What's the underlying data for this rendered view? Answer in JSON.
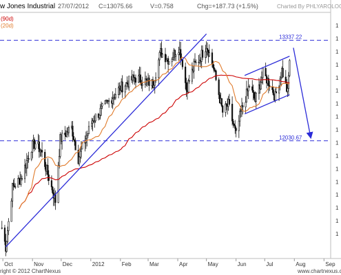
{
  "header": {
    "title": "w Jones Industrial",
    "date": "27/07/2012",
    "close": "C=13075.66",
    "volume": "V=0.758",
    "change": "Chg=+187.73 (+1.5%)",
    "credit": "Charted By PHLYAROLOGIST",
    "legend_90": "(90d)",
    "legend_20": "(20d)"
  },
  "footer": {
    "copyright": "right © 2012 ChartNexus",
    "site": "www.chartnexus.com"
  },
  "chart_data": {
    "type": "candlestick",
    "x_ticks": [
      "Oct",
      "Nov",
      "Dec",
      "2012",
      "Feb",
      "Mar",
      "Apr",
      "May",
      "Jun",
      "Jul",
      "Aug",
      "Sep"
    ],
    "y_ticks": [
      "1",
      "1",
      "1",
      "1",
      "1",
      "1",
      "1",
      "1",
      "1",
      "1",
      "1",
      "1",
      "1",
      "1",
      "1",
      "1",
      "1"
    ],
    "ylim": [
      10500,
      13700
    ],
    "levels": [
      {
        "label": "13337.22",
        "value": 13337.22
      },
      {
        "label": "12030.67",
        "value": 12030.67
      }
    ],
    "series": [
      {
        "name": "(90d)",
        "kind": "sma",
        "period": 90,
        "color": "#cc0000"
      },
      {
        "name": "(20d)",
        "kind": "sma",
        "period": 20,
        "color": "#e07a2a"
      }
    ],
    "anchors": [
      [
        "2011-09-30",
        10900
      ],
      [
        "2011-10-04",
        10650
      ],
      [
        "2011-10-11",
        11420
      ],
      [
        "2011-10-20",
        11540
      ],
      [
        "2011-10-31",
        11950
      ],
      [
        "2011-11-04",
        12000
      ],
      [
        "2011-11-10",
        11900
      ],
      [
        "2011-11-25",
        11250
      ],
      [
        "2011-11-30",
        12050
      ],
      [
        "2011-12-12",
        12200
      ],
      [
        "2011-12-19",
        11800
      ],
      [
        "2012-01-03",
        12300
      ],
      [
        "2012-01-17",
        12500
      ],
      [
        "2012-02-01",
        12720
      ],
      [
        "2012-02-16",
        12850
      ],
      [
        "2012-03-06",
        12770
      ],
      [
        "2012-03-14",
        13180
      ],
      [
        "2012-03-23",
        13080
      ],
      [
        "2012-04-02",
        13250
      ],
      [
        "2012-04-06",
        13050
      ],
      [
        "2012-04-10",
        12700
      ],
      [
        "2012-04-18",
        13000
      ],
      [
        "2012-04-24",
        13100
      ],
      [
        "2012-05-01",
        13280
      ],
      [
        "2012-05-08",
        13000
      ],
      [
        "2012-05-18",
        12400
      ],
      [
        "2012-05-24",
        12500
      ],
      [
        "2012-06-01",
        12100
      ],
      [
        "2012-06-06",
        12400
      ],
      [
        "2012-06-15",
        12750
      ],
      [
        "2012-06-21",
        12550
      ],
      [
        "2012-06-29",
        12900
      ],
      [
        "2012-07-06",
        12780
      ],
      [
        "2012-07-12",
        12600
      ],
      [
        "2012-07-19",
        12950
      ],
      [
        "2012-07-25",
        12650
      ],
      [
        "2012-07-27",
        13075.66
      ]
    ],
    "trendlines": [
      {
        "from": [
          "2011-10-04",
          10650
        ],
        "to": [
          "2012-05-01",
          13420
        ]
      },
      {
        "from": [
          "2012-06-10",
          12880
        ],
        "to": [
          "2012-07-27",
          13130
        ]
      },
      {
        "from": [
          "2012-06-10",
          12380
        ],
        "to": [
          "2012-07-27",
          12630
        ]
      },
      {
        "from": [
          "2012-07-31",
          13240
        ],
        "to": [
          "2012-08-18",
          12080
        ]
      }
    ]
  }
}
